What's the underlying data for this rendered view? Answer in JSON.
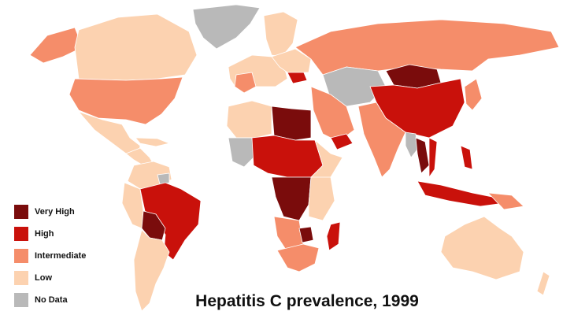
{
  "title": "Hepatitis C prevalence, 1999",
  "legend": [
    {
      "name": "Very High",
      "color": "#7a0c0c"
    },
    {
      "name": "High",
      "color": "#c9110b"
    },
    {
      "name": "Intermediate",
      "color": "#f58d6a"
    },
    {
      "name": "Low",
      "color": "#fcd2b0"
    },
    {
      "name": "No Data",
      "color": "#b9b9b9"
    }
  ]
}
